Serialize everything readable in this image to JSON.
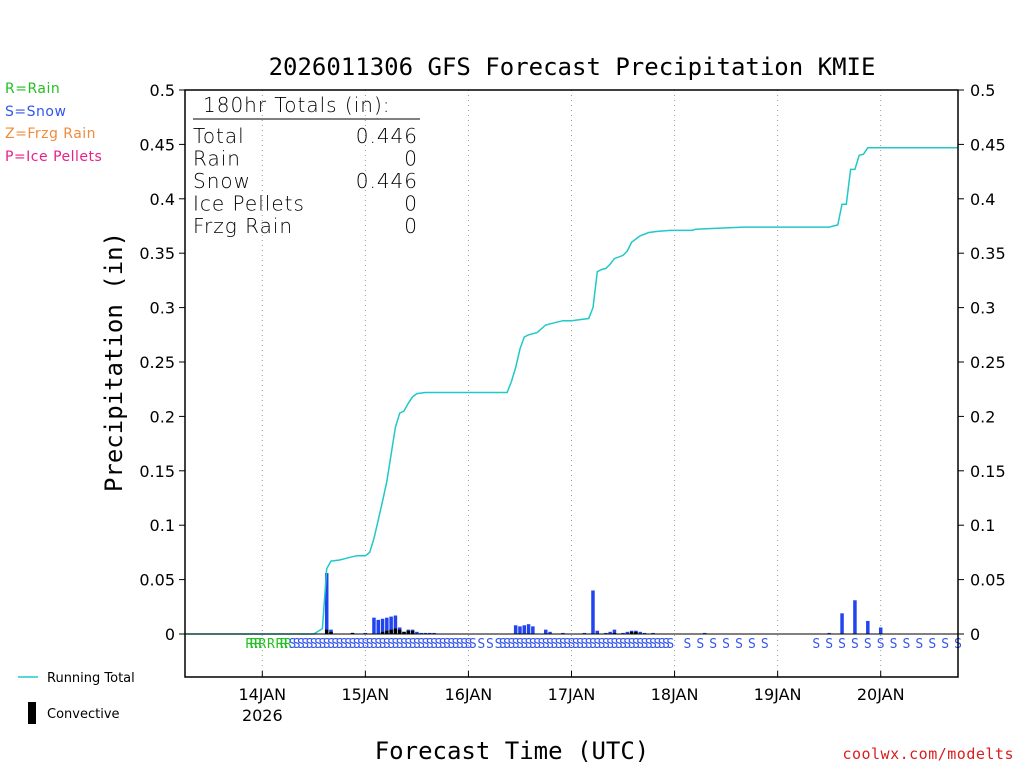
{
  "chart_data": {
    "type": "bar",
    "title": "2026011306 GFS Forecast Precipitation KMIE",
    "xlabel": "Forecast Time (UTC)",
    "ylabel": "Precipitation (in)",
    "ylim": [
      0,
      0.5
    ],
    "y_ticks": [
      0,
      0.05,
      0.1,
      0.15,
      0.2,
      0.25,
      0.3,
      0.35,
      0.4,
      0.45,
      0.5
    ],
    "x_range_hours": [
      0,
      180
    ],
    "x_ticks": [
      {
        "label": "14JAN",
        "sub": "2026",
        "hour": 18
      },
      {
        "label": "15JAN",
        "sub": "",
        "hour": 42
      },
      {
        "label": "16JAN",
        "sub": "",
        "hour": 66
      },
      {
        "label": "17JAN",
        "sub": "",
        "hour": 90
      },
      {
        "label": "18JAN",
        "sub": "",
        "hour": 114
      },
      {
        "label": "19JAN",
        "sub": "",
        "hour": 138
      },
      {
        "label": "20JAN",
        "sub": "",
        "hour": 162
      }
    ],
    "totals_box": {
      "header": "180hr Totals (in):",
      "rows": [
        {
          "label": "Total",
          "value": "0.446"
        },
        {
          "label": "Rain",
          "value": "0"
        },
        {
          "label": "Snow",
          "value": "0.446"
        },
        {
          "label": "Ice Pellets",
          "value": "0"
        },
        {
          "label": "Frzg Rain",
          "value": "0"
        }
      ]
    },
    "precip_type_legend": [
      {
        "text": "R=Rain",
        "color": "#22c022"
      },
      {
        "text": "S=Snow",
        "color": "#3355ee"
      },
      {
        "text": "Z=Frzg Rain",
        "color": "#f08c3c"
      },
      {
        "text": "P=Ice Pellets",
        "color": "#e8208a"
      }
    ],
    "series": [
      {
        "name": "Running Total",
        "type": "line",
        "color": "#22c8c8",
        "points": [
          [
            0,
            0
          ],
          [
            30,
            0
          ],
          [
            32,
            0.005
          ],
          [
            33,
            0.06
          ],
          [
            34,
            0.067
          ],
          [
            36,
            0.068
          ],
          [
            38,
            0.07
          ],
          [
            40,
            0.072
          ],
          [
            42,
            0.072
          ],
          [
            43,
            0.075
          ],
          [
            44,
            0.088
          ],
          [
            45,
            0.105
          ],
          [
            46,
            0.122
          ],
          [
            47,
            0.14
          ],
          [
            48,
            0.165
          ],
          [
            49,
            0.19
          ],
          [
            50,
            0.203
          ],
          [
            51,
            0.205
          ],
          [
            52,
            0.212
          ],
          [
            53,
            0.218
          ],
          [
            54,
            0.221
          ],
          [
            56,
            0.222
          ],
          [
            60,
            0.222
          ],
          [
            64,
            0.222
          ],
          [
            75,
            0.222
          ],
          [
            76,
            0.232
          ],
          [
            77,
            0.245
          ],
          [
            78,
            0.262
          ],
          [
            79,
            0.273
          ],
          [
            80,
            0.275
          ],
          [
            81,
            0.276
          ],
          [
            82,
            0.277
          ],
          [
            84,
            0.284
          ],
          [
            86,
            0.286
          ],
          [
            88,
            0.288
          ],
          [
            90,
            0.288
          ],
          [
            92,
            0.289
          ],
          [
            94,
            0.29
          ],
          [
            95,
            0.3
          ],
          [
            96,
            0.333
          ],
          [
            97,
            0.335
          ],
          [
            98,
            0.336
          ],
          [
            99,
            0.34
          ],
          [
            100,
            0.345
          ],
          [
            102,
            0.348
          ],
          [
            103,
            0.352
          ],
          [
            104,
            0.36
          ],
          [
            106,
            0.366
          ],
          [
            108,
            0.369
          ],
          [
            110,
            0.37
          ],
          [
            113,
            0.371
          ],
          [
            118,
            0.371
          ],
          [
            119,
            0.372
          ],
          [
            124,
            0.373
          ],
          [
            130,
            0.374
          ],
          [
            140,
            0.374
          ],
          [
            150,
            0.374
          ],
          [
            152,
            0.376
          ],
          [
            153,
            0.395
          ],
          [
            154,
            0.395
          ],
          [
            155,
            0.427
          ],
          [
            156,
            0.427
          ],
          [
            157,
            0.44
          ],
          [
            158,
            0.441
          ],
          [
            159,
            0.447
          ],
          [
            162,
            0.447
          ],
          [
            170,
            0.447
          ],
          [
            180,
            0.447
          ]
        ]
      },
      {
        "name": "Snow",
        "type": "bar",
        "color": "#2244ee",
        "bars": [
          [
            33,
            0.056
          ],
          [
            34,
            0.004
          ],
          [
            39,
            0.001
          ],
          [
            42,
            0.001
          ],
          [
            44,
            0.015
          ],
          [
            45,
            0.013
          ],
          [
            46,
            0.014
          ],
          [
            47,
            0.015
          ],
          [
            48,
            0.016
          ],
          [
            49,
            0.017
          ],
          [
            50,
            0.006
          ],
          [
            51,
            0.002
          ],
          [
            52,
            0.004
          ],
          [
            53,
            0.004
          ],
          [
            54,
            0.002
          ],
          [
            55,
            0.001
          ],
          [
            56,
            0.001
          ],
          [
            57,
            0.001
          ],
          [
            58,
            0.001
          ],
          [
            77,
            0.008
          ],
          [
            78,
            0.007
          ],
          [
            79,
            0.008
          ],
          [
            80,
            0.009
          ],
          [
            81,
            0.007
          ],
          [
            84,
            0.004
          ],
          [
            85,
            0.002
          ],
          [
            88,
            0.001
          ],
          [
            93,
            0.001
          ],
          [
            95,
            0.04
          ],
          [
            96,
            0.003
          ],
          [
            98,
            0.001
          ],
          [
            99,
            0.002
          ],
          [
            100,
            0.004
          ],
          [
            102,
            0.001
          ],
          [
            103,
            0.002
          ],
          [
            104,
            0.003
          ],
          [
            105,
            0.003
          ],
          [
            106,
            0.002
          ],
          [
            107,
            0.001
          ],
          [
            109,
            0.001
          ],
          [
            121,
            0.001
          ],
          [
            150,
            0.001
          ],
          [
            153,
            0.019
          ],
          [
            156,
            0.031
          ],
          [
            159,
            0.012
          ],
          [
            162,
            0.006
          ]
        ]
      },
      {
        "name": "Convective",
        "type": "bar",
        "color": "#000000",
        "bars": [
          [
            33,
            0.004
          ],
          [
            34,
            0.002
          ],
          [
            39,
            0.001
          ],
          [
            46,
            0.002
          ],
          [
            47,
            0.003
          ],
          [
            48,
            0.004
          ],
          [
            49,
            0.005
          ],
          [
            50,
            0.004
          ],
          [
            51,
            0.002
          ],
          [
            52,
            0.003
          ],
          [
            53,
            0.003
          ],
          [
            100,
            0.001
          ],
          [
            104,
            0.002
          ],
          [
            105,
            0.002
          ]
        ]
      }
    ],
    "precip_type_markers": [
      {
        "hour": 15,
        "type": "R"
      },
      {
        "hour": 16,
        "type": "R"
      },
      {
        "hour": 17,
        "type": "R"
      },
      {
        "hour": 18,
        "type": "R"
      },
      {
        "hour": 20,
        "type": "R"
      },
      {
        "hour": 22,
        "type": "R"
      },
      {
        "hour": 23,
        "type": "R"
      },
      {
        "hour": 24,
        "type": "R"
      },
      {
        "hour": 25,
        "type": "S"
      },
      {
        "hour": 26,
        "type": "S"
      },
      {
        "hour": 27,
        "type": "S"
      },
      {
        "hour": 28,
        "type": "S"
      },
      {
        "hour": 29,
        "type": "S"
      },
      {
        "hour": 30,
        "type": "S"
      },
      {
        "hour": 31,
        "type": "S"
      },
      {
        "hour": 32,
        "type": "S"
      },
      {
        "hour": 33,
        "type": "S"
      },
      {
        "hour": 34,
        "type": "S"
      },
      {
        "hour": 35,
        "type": "S"
      },
      {
        "hour": 36,
        "type": "S"
      },
      {
        "hour": 37,
        "type": "S"
      },
      {
        "hour": 38,
        "type": "S"
      },
      {
        "hour": 39,
        "type": "S"
      },
      {
        "hour": 40,
        "type": "S"
      },
      {
        "hour": 41,
        "type": "S"
      },
      {
        "hour": 42,
        "type": "S"
      },
      {
        "hour": 43,
        "type": "S"
      },
      {
        "hour": 44,
        "type": "S"
      },
      {
        "hour": 45,
        "type": "S"
      },
      {
        "hour": 46,
        "type": "S"
      },
      {
        "hour": 47,
        "type": "S"
      },
      {
        "hour": 48,
        "type": "S"
      },
      {
        "hour": 49,
        "type": "S"
      },
      {
        "hour": 50,
        "type": "S"
      },
      {
        "hour": 51,
        "type": "S"
      },
      {
        "hour": 52,
        "type": "S"
      },
      {
        "hour": 53,
        "type": "S"
      },
      {
        "hour": 54,
        "type": "S"
      },
      {
        "hour": 55,
        "type": "S"
      },
      {
        "hour": 56,
        "type": "S"
      },
      {
        "hour": 57,
        "type": "S"
      },
      {
        "hour": 58,
        "type": "S"
      },
      {
        "hour": 59,
        "type": "S"
      },
      {
        "hour": 60,
        "type": "S"
      },
      {
        "hour": 61,
        "type": "S"
      },
      {
        "hour": 62,
        "type": "S"
      },
      {
        "hour": 63,
        "type": "S"
      },
      {
        "hour": 64,
        "type": "S"
      },
      {
        "hour": 65,
        "type": "S"
      },
      {
        "hour": 66,
        "type": "S"
      },
      {
        "hour": 67,
        "type": "S"
      },
      {
        "hour": 69,
        "type": "S"
      },
      {
        "hour": 71,
        "type": "S"
      },
      {
        "hour": 73,
        "type": "S"
      },
      {
        "hour": 74,
        "type": "S"
      },
      {
        "hour": 75,
        "type": "S"
      },
      {
        "hour": 76,
        "type": "S"
      },
      {
        "hour": 77,
        "type": "S"
      },
      {
        "hour": 78,
        "type": "S"
      },
      {
        "hour": 79,
        "type": "S"
      },
      {
        "hour": 80,
        "type": "S"
      },
      {
        "hour": 81,
        "type": "S"
      },
      {
        "hour": 82,
        "type": "S"
      },
      {
        "hour": 83,
        "type": "S"
      },
      {
        "hour": 84,
        "type": "S"
      },
      {
        "hour": 85,
        "type": "S"
      },
      {
        "hour": 86,
        "type": "S"
      },
      {
        "hour": 87,
        "type": "S"
      },
      {
        "hour": 88,
        "type": "S"
      },
      {
        "hour": 89,
        "type": "S"
      },
      {
        "hour": 90,
        "type": "S"
      },
      {
        "hour": 91,
        "type": "S"
      },
      {
        "hour": 92,
        "type": "S"
      },
      {
        "hour": 93,
        "type": "S"
      },
      {
        "hour": 94,
        "type": "S"
      },
      {
        "hour": 95,
        "type": "S"
      },
      {
        "hour": 96,
        "type": "S"
      },
      {
        "hour": 97,
        "type": "S"
      },
      {
        "hour": 98,
        "type": "S"
      },
      {
        "hour": 99,
        "type": "S"
      },
      {
        "hour": 100,
        "type": "S"
      },
      {
        "hour": 101,
        "type": "S"
      },
      {
        "hour": 102,
        "type": "S"
      },
      {
        "hour": 103,
        "type": "S"
      },
      {
        "hour": 104,
        "type": "S"
      },
      {
        "hour": 105,
        "type": "S"
      },
      {
        "hour": 106,
        "type": "S"
      },
      {
        "hour": 107,
        "type": "S"
      },
      {
        "hour": 108,
        "type": "S"
      },
      {
        "hour": 109,
        "type": "S"
      },
      {
        "hour": 110,
        "type": "S"
      },
      {
        "hour": 111,
        "type": "S"
      },
      {
        "hour": 112,
        "type": "S"
      },
      {
        "hour": 113,
        "type": "S"
      },
      {
        "hour": 117,
        "type": "S"
      },
      {
        "hour": 120,
        "type": "S"
      },
      {
        "hour": 123,
        "type": "S"
      },
      {
        "hour": 126,
        "type": "S"
      },
      {
        "hour": 129,
        "type": "S"
      },
      {
        "hour": 132,
        "type": "S"
      },
      {
        "hour": 135,
        "type": "S"
      },
      {
        "hour": 147,
        "type": "S"
      },
      {
        "hour": 150,
        "type": "S"
      },
      {
        "hour": 153,
        "type": "S"
      },
      {
        "hour": 156,
        "type": "S"
      },
      {
        "hour": 159,
        "type": "S"
      },
      {
        "hour": 162,
        "type": "S"
      },
      {
        "hour": 165,
        "type": "S"
      },
      {
        "hour": 168,
        "type": "S"
      },
      {
        "hour": 171,
        "type": "S"
      },
      {
        "hour": 174,
        "type": "S"
      },
      {
        "hour": 177,
        "type": "S"
      },
      {
        "hour": 180,
        "type": "S"
      }
    ],
    "series_legend": [
      {
        "text": "Running Total",
        "color": "#22c8c8",
        "kind": "line"
      },
      {
        "text": "Convective",
        "color": "#000000",
        "kind": "bar"
      }
    ]
  },
  "credit": "coolwx.com/modelts"
}
